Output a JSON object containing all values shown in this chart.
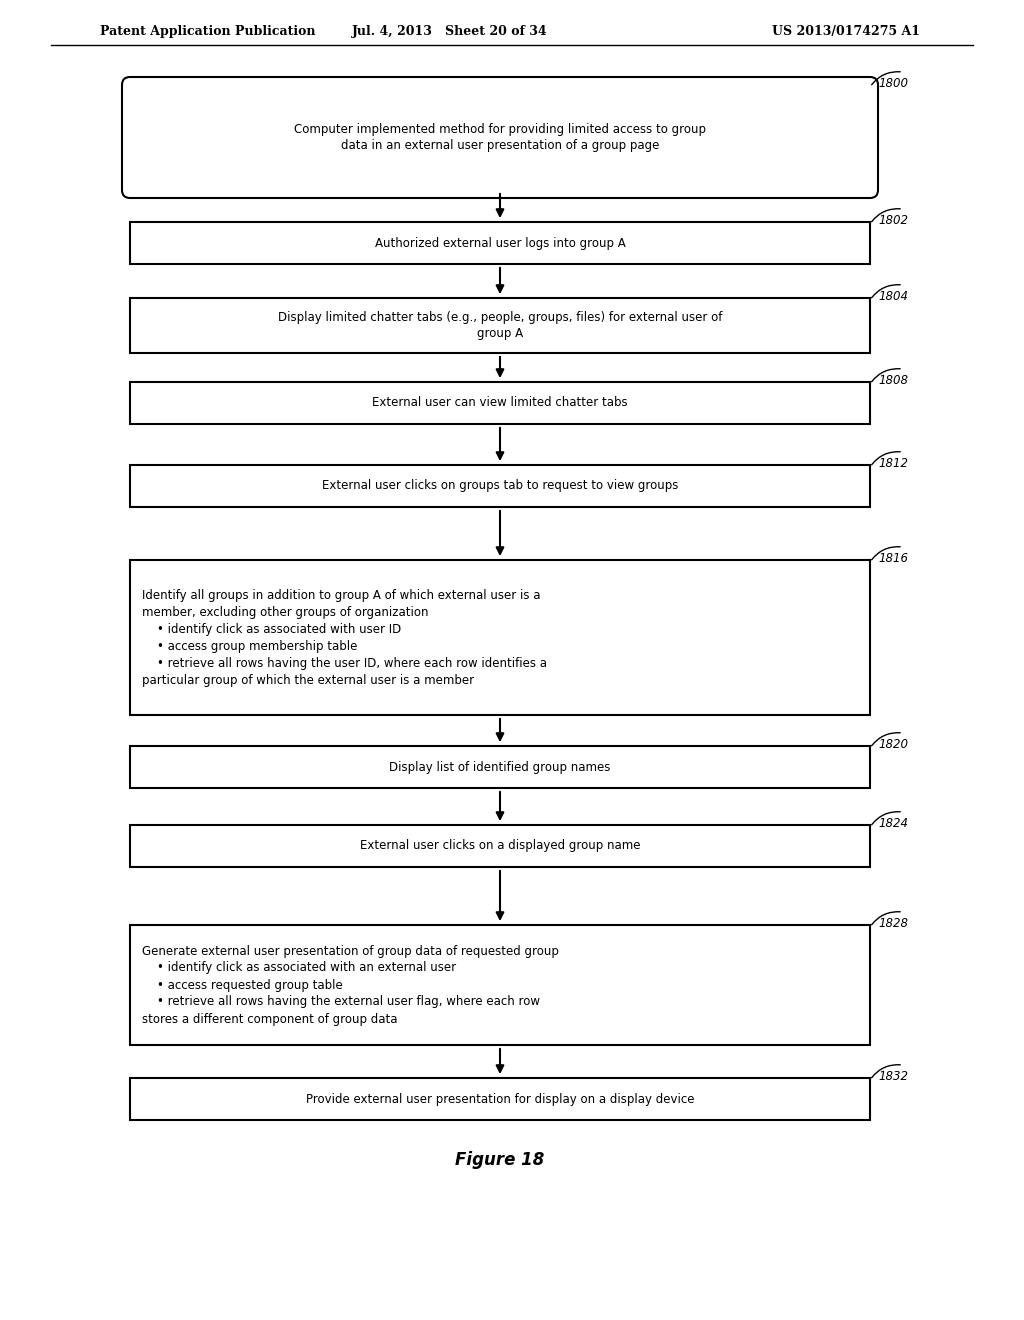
{
  "header_left": "Patent Application Publication",
  "header_mid": "Jul. 4, 2013   Sheet 20 of 34",
  "header_right": "US 2013/0174275 A1",
  "figure_label": "Figure 18",
  "background_color": "#ffffff",
  "boxes": [
    {
      "id": "1800",
      "label": "Computer implemented method for providing limited access to group\ndata in an external user presentation of a group page",
      "shape": "rounded",
      "ref": "1800",
      "align": "center"
    },
    {
      "id": "1802",
      "label": "Authorized external user logs into group A",
      "shape": "rect",
      "ref": "1802",
      "align": "center"
    },
    {
      "id": "1804",
      "label": "Display limited chatter tabs (e.g., people, groups, files) for external user of\ngroup A",
      "shape": "rect",
      "ref": "1804",
      "align": "center"
    },
    {
      "id": "1808",
      "label": "External user can view limited chatter tabs",
      "shape": "rect",
      "ref": "1808",
      "align": "center"
    },
    {
      "id": "1812",
      "label": "External user clicks on groups tab to request to view groups",
      "shape": "rect",
      "ref": "1812",
      "align": "center"
    },
    {
      "id": "1816",
      "label": "Identify all groups in addition to group A of which external user is a\nmember, excluding other groups of organization\n    • identify click as associated with user ID\n    • access group membership table\n    • retrieve all rows having the user ID, where each row identifies a\nparticular group of which the external user is a member",
      "shape": "rect",
      "ref": "1816",
      "align": "left"
    },
    {
      "id": "1820",
      "label": "Display list of identified group names",
      "shape": "rect",
      "ref": "1820",
      "align": "center"
    },
    {
      "id": "1824",
      "label": "External user clicks on a displayed group name",
      "shape": "rect",
      "ref": "1824",
      "align": "center"
    },
    {
      "id": "1828",
      "label": "Generate external user presentation of group data of requested group\n    • identify click as associated with an external user\n    • access requested group table\n    • retrieve all rows having the external user flag, where each row\nstores a different component of group data",
      "shape": "rect",
      "ref": "1828",
      "align": "left"
    },
    {
      "id": "1832",
      "label": "Provide external user presentation for display on a display device",
      "shape": "rect",
      "ref": "1832",
      "align": "center"
    }
  ]
}
